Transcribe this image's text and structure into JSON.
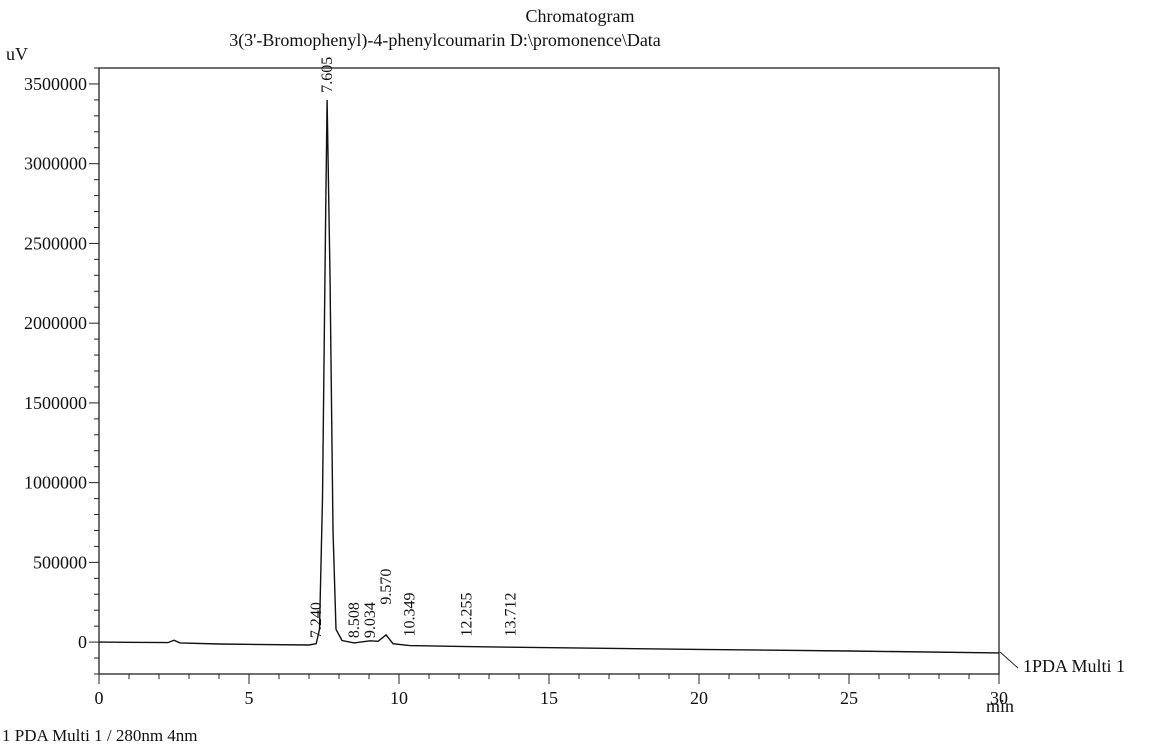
{
  "chart_data": {
    "type": "line",
    "title": "Chromatogram",
    "subtitle": "3(3'-Bromophenyl)-4-phenylcoumarin D:\\promonence\\Data",
    "ylabel": "uV",
    "xlabel": "min",
    "xlim": [
      0,
      30
    ],
    "ylim": [
      -200000,
      3600000
    ],
    "x_ticks": [
      0,
      5,
      10,
      15,
      20,
      25,
      30
    ],
    "y_ticks": [
      0,
      500000,
      1000000,
      1500000,
      2000000,
      2500000,
      3000000,
      3500000
    ],
    "grid": false,
    "series": [
      {
        "name": "1PDA Multi 1",
        "points": [
          [
            0,
            0
          ],
          [
            2.3,
            -3000
          ],
          [
            2.5,
            12000
          ],
          [
            2.7,
            -5000
          ],
          [
            4,
            -12000
          ],
          [
            7.0,
            -18000
          ],
          [
            7.24,
            -10000
          ],
          [
            7.35,
            80000
          ],
          [
            7.45,
            900000
          ],
          [
            7.55,
            2600000
          ],
          [
            7.605,
            3400000
          ],
          [
            7.7,
            2300000
          ],
          [
            7.8,
            700000
          ],
          [
            7.9,
            80000
          ],
          [
            8.1,
            10000
          ],
          [
            8.508,
            -5000
          ],
          [
            9.034,
            8000
          ],
          [
            9.3,
            5000
          ],
          [
            9.57,
            45000
          ],
          [
            9.8,
            -10000
          ],
          [
            10.349,
            -22000
          ],
          [
            12.255,
            -28000
          ],
          [
            13.712,
            -32000
          ],
          [
            20,
            -46000
          ],
          [
            25,
            -56000
          ],
          [
            30,
            -68000
          ]
        ]
      }
    ],
    "peaks": [
      {
        "x": 7.24,
        "label": "7.240",
        "label_y": 0
      },
      {
        "x": 7.605,
        "label": "7.605",
        "label_y": 3420000
      },
      {
        "x": 8.508,
        "label": "8.508",
        "label_y": 0
      },
      {
        "x": 9.034,
        "label": "9.034",
        "label_y": 0
      },
      {
        "x": 9.57,
        "label": "9.570",
        "label_y": 210000
      },
      {
        "x": 10.349,
        "label": "10.349",
        "label_y": 10000
      },
      {
        "x": 12.255,
        "label": "12.255",
        "label_y": 10000
      },
      {
        "x": 13.712,
        "label": "13.712",
        "label_y": 10000
      }
    ],
    "footer": "1   PDA Multi 1 / 280nm 4nm"
  }
}
